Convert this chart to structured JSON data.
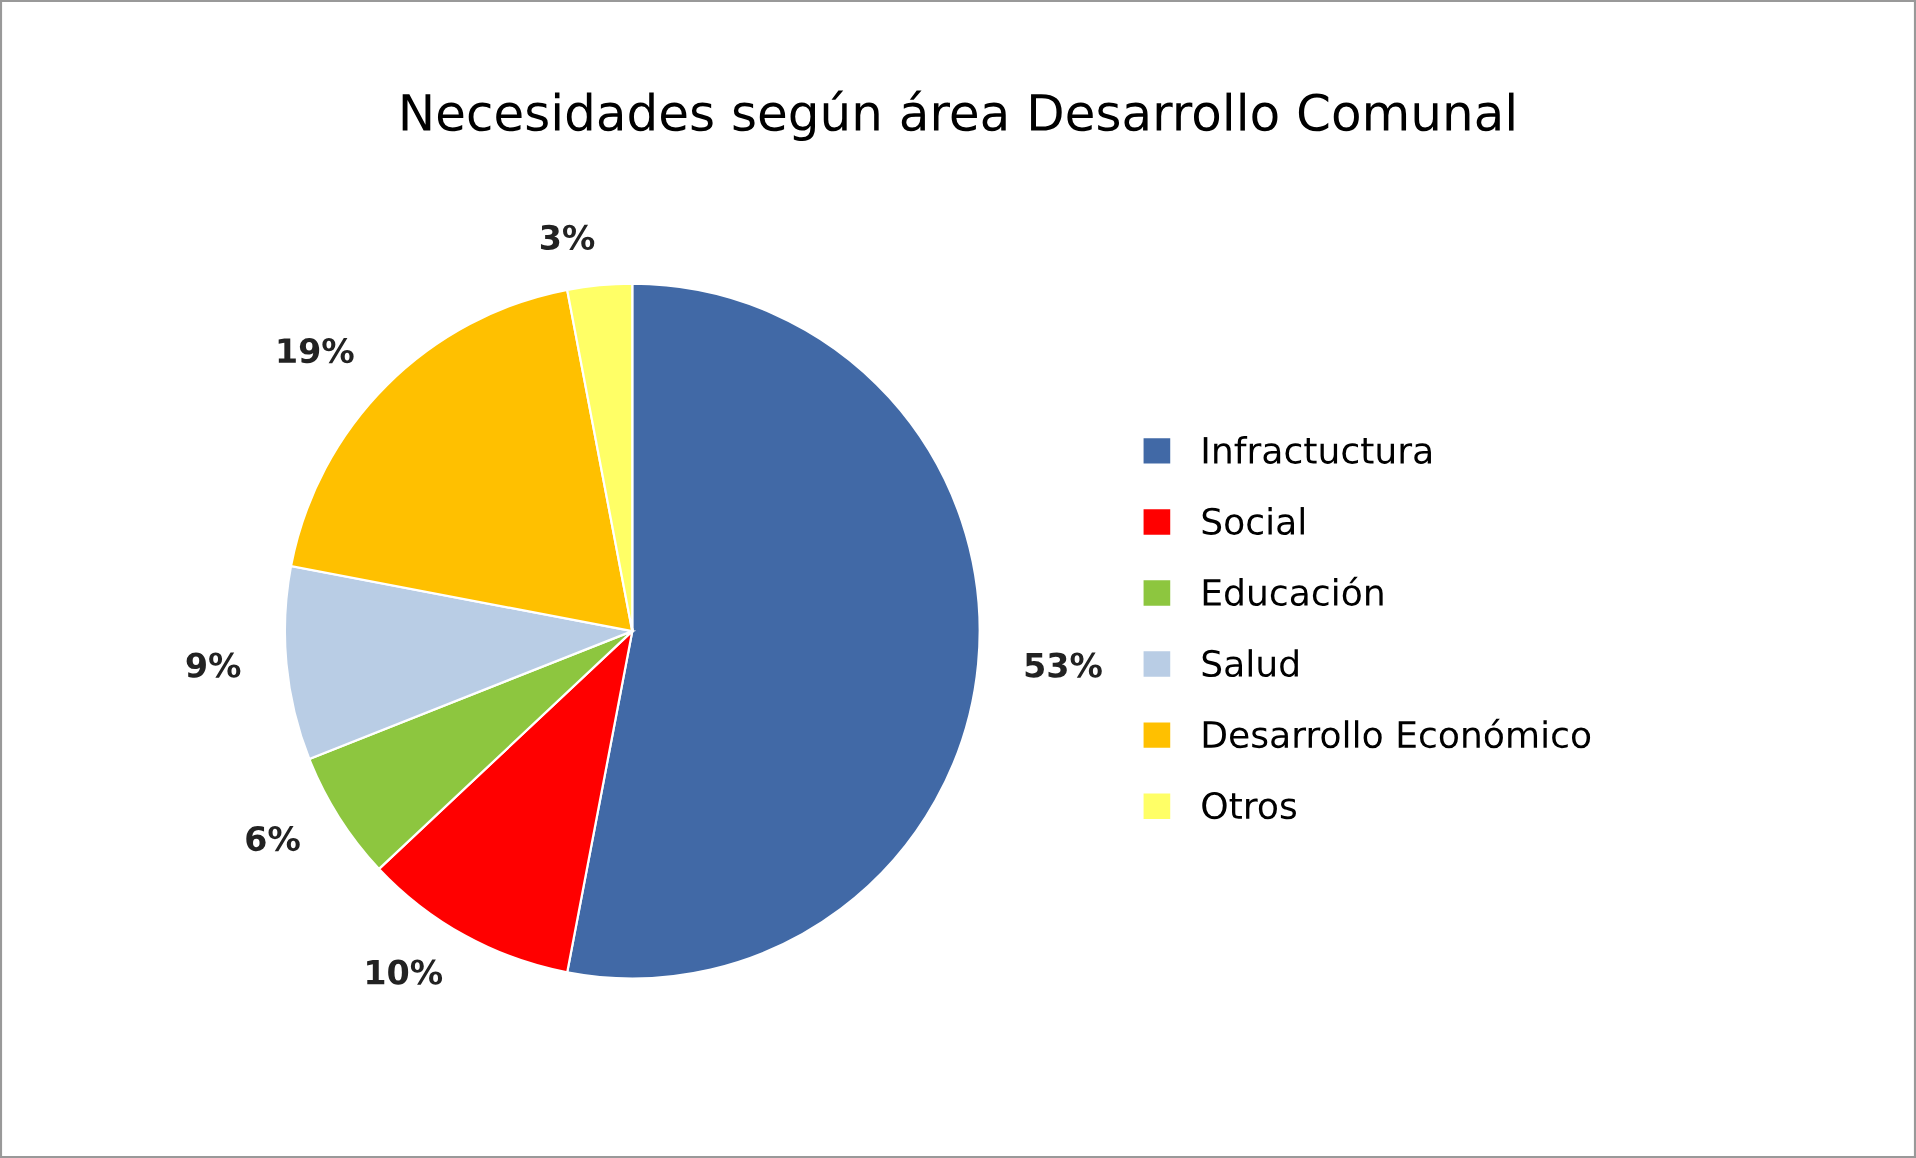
{
  "chart_data": {
    "type": "pie",
    "title": "Necesidades según área Desarrollo Comunal",
    "categories": [
      "Infractuctura",
      "Social",
      "Educación",
      "Salud",
      "Desarrollo Económico",
      "Otros"
    ],
    "values": [
      53,
      10,
      6,
      9,
      19,
      3
    ],
    "value_labels": [
      "53%",
      "10%",
      "6%",
      "9%",
      "19%",
      "3%"
    ],
    "colors": [
      "#4169a6",
      "#ff0000",
      "#8dc63f",
      "#b9cde5",
      "#ffc000",
      "#ffff66"
    ],
    "legend": "right"
  }
}
